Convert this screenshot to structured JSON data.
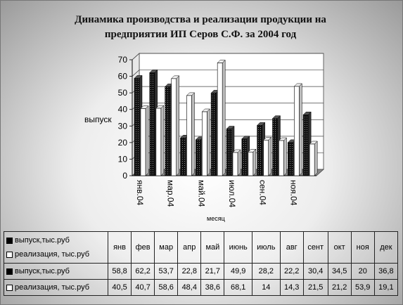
{
  "chart_data": {
    "type": "bar",
    "title_line1": "Динамика производства и реализации продукции  на",
    "title_line2": "предприятии ИП Серов С.Ф. за 2004 год",
    "ylabel": "выпуск",
    "xlabel": "месяц",
    "ylim": [
      0,
      70
    ],
    "yticks": [
      "0",
      "10",
      "20",
      "30",
      "40",
      "50",
      "60",
      "70"
    ],
    "categories": [
      "янв.04",
      "фев.04",
      "мар.04",
      "апр.04",
      "май.04",
      "июнь.04",
      "июль.04",
      "авг.04",
      "сент.04",
      "окт.04",
      "ноя.04",
      "дек.04"
    ],
    "axis_tick_labels": [
      "янв.04",
      "мар.04",
      "май.04",
      "июл.04",
      "сен.04",
      "ноя.04"
    ],
    "series": [
      {
        "name": "выпуск,тыс.руб",
        "values": [
          58.8,
          62.2,
          53.7,
          22.8,
          21.7,
          49.9,
          28.2,
          22.2,
          30.4,
          34.5,
          20,
          36.8
        ],
        "color": "#111111"
      },
      {
        "name": "реализация, тыс.руб",
        "values": [
          40.5,
          40.7,
          58.6,
          48.4,
          38.6,
          68.1,
          14,
          14.3,
          21.5,
          21.2,
          53.9,
          19.1
        ],
        "color": "#ffffff"
      }
    ],
    "legend_placement": "data-table"
  },
  "table": {
    "header_legend": [
      "выпуск,тыс.руб",
      "реализация, тыс.руб"
    ],
    "columns": [
      "янв",
      "фев",
      "мар",
      "апр",
      "май",
      "июнь",
      "июль",
      "авг",
      "сент",
      "окт",
      "ноя",
      "дек"
    ],
    "rows": [
      {
        "label": "выпуск,тыс.руб",
        "values": [
          "58,8",
          "62,2",
          "53,7",
          "22,8",
          "21,7",
          "49,9",
          "28,2",
          "22,2",
          "30,4",
          "34,5",
          "20",
          "36,8"
        ]
      },
      {
        "label": "реализация, тыс.руб",
        "values": [
          "40,5",
          "40,7",
          "58,6",
          "48,4",
          "38,6",
          "68,1",
          "14",
          "14,3",
          "21,5",
          "21,2",
          "53,9",
          "19,1"
        ]
      }
    ]
  }
}
